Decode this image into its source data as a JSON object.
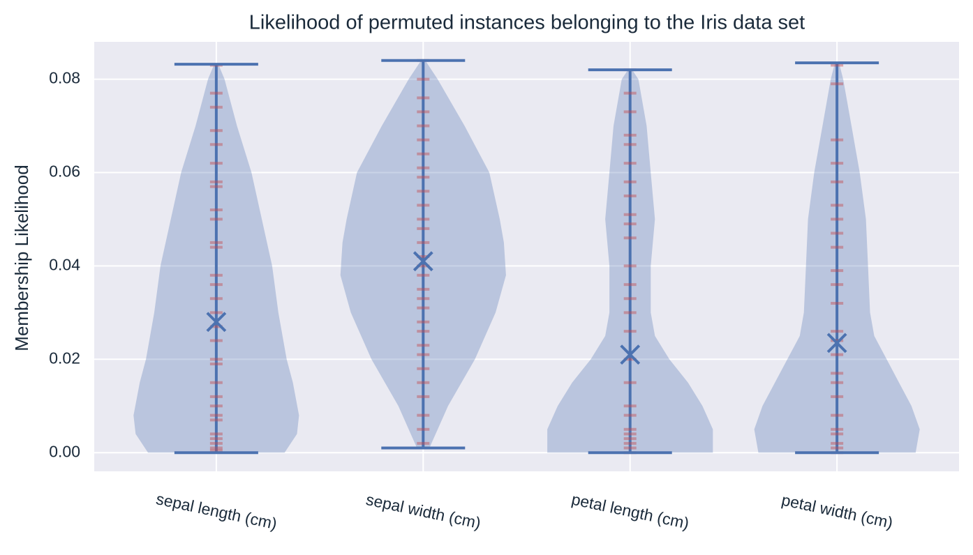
{
  "chart_data": {
    "type": "violin",
    "title": "Likelihood of permuted instances belonging to the Iris data set",
    "y_label": "Membership Likelihood",
    "categories": [
      "sepal length (cm)",
      "sepal width (cm)",
      "petal length (cm)",
      "petal width (cm)"
    ],
    "color": "#4c72b0",
    "point_color": "#c44e52",
    "grid": true,
    "ylim": [
      -0.004,
      0.088
    ],
    "yticks": [
      {
        "value": 0,
        "label": "0.00"
      },
      {
        "value": 0.02,
        "label": "0.02"
      },
      {
        "value": 0.04,
        "label": "0.04"
      },
      {
        "value": 0.06,
        "label": "0.06"
      },
      {
        "value": 0.08,
        "label": "0.08"
      }
    ],
    "violins": [
      {
        "min": 0,
        "max": 0.0832,
        "mean": 0.028,
        "levels": [
          0,
          0.004,
          0.008,
          0.015,
          0.02,
          0.03,
          0.04,
          0.05,
          0.06,
          0.07,
          0.08,
          0.0832
        ],
        "widths": [
          0.33,
          0.39,
          0.4,
          0.37,
          0.34,
          0.3,
          0.27,
          0.22,
          0.17,
          0.1,
          0.04,
          0.01
        ],
        "points": [
          0.0005,
          0.001,
          0.002,
          0.003,
          0.004,
          0.007,
          0.008,
          0.01,
          0.012,
          0.015,
          0.019,
          0.02,
          0.024,
          0.027,
          0.03,
          0.033,
          0.036,
          0.038,
          0.044,
          0.045,
          0.05,
          0.052,
          0.057,
          0.058,
          0.062,
          0.066,
          0.069,
          0.074,
          0.077,
          0.083
        ]
      },
      {
        "min": 0.001,
        "max": 0.084,
        "mean": 0.041,
        "levels": [
          0.001,
          0.01,
          0.02,
          0.03,
          0.038,
          0.045,
          0.05,
          0.06,
          0.07,
          0.08,
          0.084
        ],
        "widths": [
          0.03,
          0.12,
          0.25,
          0.35,
          0.4,
          0.39,
          0.37,
          0.32,
          0.2,
          0.07,
          0.01
        ],
        "points": [
          0.002,
          0.005,
          0.008,
          0.012,
          0.015,
          0.018,
          0.021,
          0.023,
          0.026,
          0.028,
          0.031,
          0.033,
          0.035,
          0.038,
          0.04,
          0.042,
          0.045,
          0.048,
          0.05,
          0.053,
          0.056,
          0.059,
          0.061,
          0.064,
          0.067,
          0.07,
          0.073,
          0.076,
          0.08,
          0.084
        ]
      },
      {
        "min": 0,
        "max": 0.082,
        "mean": 0.021,
        "levels": [
          0,
          0.005,
          0.01,
          0.015,
          0.02,
          0.025,
          0.03,
          0.04,
          0.05,
          0.06,
          0.07,
          0.08,
          0.082
        ],
        "widths": [
          0.4,
          0.4,
          0.35,
          0.28,
          0.19,
          0.12,
          0.1,
          0.1,
          0.12,
          0.1,
          0.08,
          0.04,
          0.01
        ],
        "points": [
          0,
          0.001,
          0.002,
          0.003,
          0.004,
          0.005,
          0.008,
          0.01,
          0.015,
          0.02,
          0.026,
          0.03,
          0.033,
          0.036,
          0.04,
          0.046,
          0.049,
          0.051,
          0.055,
          0.058,
          0.062,
          0.066,
          0.068,
          0.073,
          0.077,
          0.082
        ]
      },
      {
        "min": 0,
        "max": 0.0835,
        "mean": 0.0235,
        "levels": [
          0,
          0.005,
          0.01,
          0.015,
          0.02,
          0.025,
          0.03,
          0.04,
          0.05,
          0.06,
          0.07,
          0.08,
          0.0835
        ],
        "widths": [
          0.38,
          0.4,
          0.36,
          0.3,
          0.24,
          0.18,
          0.16,
          0.15,
          0.14,
          0.11,
          0.07,
          0.03,
          0.01
        ],
        "points": [
          0,
          0.001,
          0.002,
          0.004,
          0.005,
          0.008,
          0.012,
          0.015,
          0.017,
          0.021,
          0.024,
          0.026,
          0.032,
          0.036,
          0.039,
          0.044,
          0.047,
          0.05,
          0.053,
          0.058,
          0.062,
          0.067,
          0.079,
          0.083
        ]
      }
    ]
  }
}
